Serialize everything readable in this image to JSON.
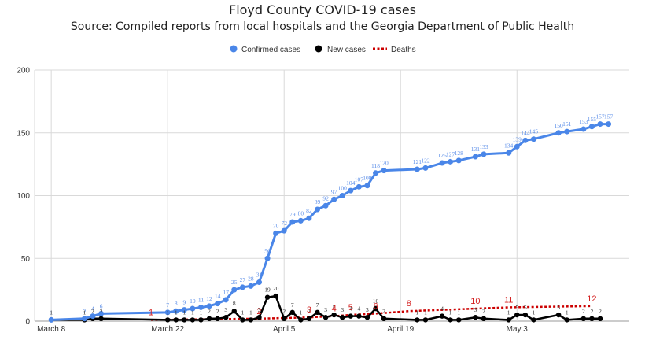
{
  "chart_data": {
    "type": "line",
    "title": "Floyd County COVID-19 cases",
    "subtitle": "Source: Compiled reports from local hospitals and the Georgia Department of Public Health",
    "x_tick_labels": [
      "March 8",
      "March 22",
      "April 5",
      "April 19",
      "May 3"
    ],
    "x_ticks_day_of_year": [
      68,
      82,
      96,
      110,
      124
    ],
    "ylim": [
      0,
      200
    ],
    "y_ticks": [
      0,
      50,
      100,
      150,
      200
    ],
    "legend_position": "top",
    "colors": {
      "confirmed": "#4a86e8",
      "new": "#000000",
      "deaths": "#cc0000"
    },
    "series": [
      {
        "name": "Confirmed cases",
        "style": "line-markers",
        "points": [
          [
            68,
            1
          ],
          [
            72,
            2
          ],
          [
            73,
            4
          ],
          [
            74,
            6
          ],
          [
            82,
            7
          ],
          [
            83,
            8
          ],
          [
            84,
            9
          ],
          [
            85,
            10
          ],
          [
            86,
            11
          ],
          [
            87,
            12
          ],
          [
            88,
            14
          ],
          [
            89,
            17
          ],
          [
            90,
            25
          ],
          [
            91,
            27
          ],
          [
            92,
            28
          ],
          [
            93,
            31
          ],
          [
            94,
            50
          ],
          [
            95,
            70
          ],
          [
            96,
            72
          ],
          [
            97,
            79
          ],
          [
            98,
            80
          ],
          [
            99,
            82
          ],
          [
            100,
            89
          ],
          [
            101,
            92
          ],
          [
            102,
            97
          ],
          [
            103,
            100
          ],
          [
            104,
            104
          ],
          [
            105,
            107
          ],
          [
            106,
            108
          ],
          [
            107,
            118
          ],
          [
            108,
            120
          ],
          [
            112,
            121
          ],
          [
            113,
            122
          ],
          [
            115,
            126
          ],
          [
            116,
            127
          ],
          [
            117,
            128
          ],
          [
            119,
            131
          ],
          [
            120,
            133
          ],
          [
            123,
            134
          ],
          [
            124,
            139
          ],
          [
            125,
            144
          ],
          [
            126,
            145
          ],
          [
            129,
            150
          ],
          [
            130,
            151
          ],
          [
            132,
            153
          ],
          [
            133,
            155
          ],
          [
            134,
            157
          ],
          [
            135,
            157
          ]
        ]
      },
      {
        "name": "New cases",
        "style": "line-markers",
        "points": [
          [
            68,
            1
          ],
          [
            72,
            1
          ],
          [
            73,
            2
          ],
          [
            74,
            2
          ],
          [
            82,
            1
          ],
          [
            83,
            1
          ],
          [
            84,
            1
          ],
          [
            85,
            1
          ],
          [
            86,
            1
          ],
          [
            87,
            2
          ],
          [
            88,
            2
          ],
          [
            89,
            3
          ],
          [
            90,
            8
          ],
          [
            91,
            1
          ],
          [
            92,
            1
          ],
          [
            93,
            3
          ],
          [
            94,
            19
          ],
          [
            95,
            20
          ],
          [
            96,
            2
          ],
          [
            97,
            7
          ],
          [
            98,
            1
          ],
          [
            99,
            2
          ],
          [
            100,
            7
          ],
          [
            101,
            3
          ],
          [
            102,
            5
          ],
          [
            103,
            3
          ],
          [
            104,
            4
          ],
          [
            105,
            4
          ],
          [
            106,
            3
          ],
          [
            107,
            10
          ],
          [
            108,
            2
          ],
          [
            112,
            1
          ],
          [
            113,
            1
          ],
          [
            115,
            4
          ],
          [
            116,
            1
          ],
          [
            117,
            1
          ],
          [
            119,
            3
          ],
          [
            120,
            2
          ],
          [
            123,
            1
          ],
          [
            124,
            5
          ],
          [
            125,
            5
          ],
          [
            126,
            1
          ],
          [
            129,
            5
          ],
          [
            130,
            1
          ],
          [
            132,
            2
          ],
          [
            133,
            2
          ],
          [
            134,
            2
          ]
        ]
      },
      {
        "name": "Deaths",
        "style": "dotted",
        "points": [
          [
            80,
            1
          ],
          [
            93,
            2
          ],
          [
            99,
            3
          ],
          [
            102,
            4
          ],
          [
            104,
            5
          ],
          [
            107,
            6
          ],
          [
            111,
            8
          ],
          [
            119,
            10
          ],
          [
            123,
            11
          ],
          [
            133,
            12
          ]
        ]
      }
    ]
  }
}
